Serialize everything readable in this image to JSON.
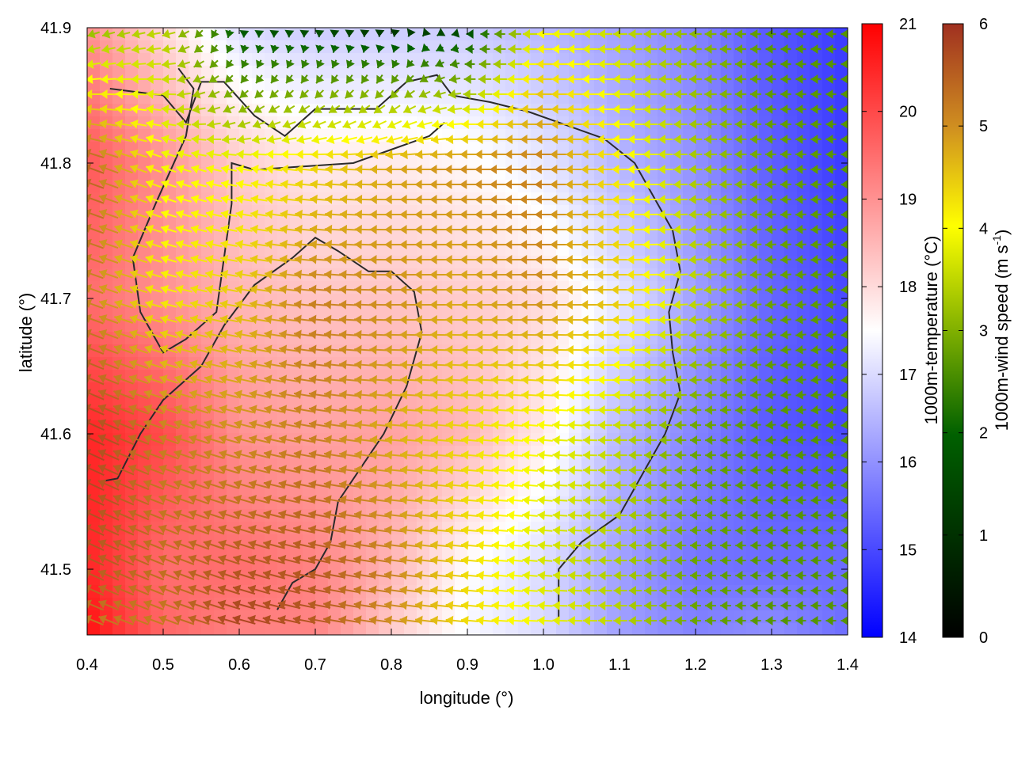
{
  "chart_data": {
    "type": "heatmap",
    "title": "",
    "xlabel": "longitude (°)",
    "ylabel": "latitude (°)",
    "xlim": [
      0.4,
      1.4
    ],
    "ylim": [
      41.45,
      41.9
    ],
    "x_ticks": [
      "0.4",
      "0.5",
      "0.6",
      "0.7",
      "0.8",
      "0.9",
      "1.0",
      "1.1",
      "1.2",
      "1.3",
      "1.4"
    ],
    "y_ticks": [
      "41.5",
      "41.6",
      "41.7",
      "41.8",
      "41.9"
    ],
    "x_tick_values": [
      0.4,
      0.5,
      0.6,
      0.7,
      0.8,
      0.9,
      1.0,
      1.1,
      1.2,
      1.3,
      1.4
    ],
    "y_tick_values": [
      41.5,
      41.6,
      41.7,
      41.8,
      41.9
    ],
    "grid": false,
    "temperature_colorbar": {
      "label": "1000m-temperature (°C)",
      "range": [
        14,
        21
      ],
      "ticks": [
        "14",
        "15",
        "16",
        "17",
        "18",
        "19",
        "20",
        "21"
      ],
      "tick_values": [
        14,
        15,
        16,
        17,
        18,
        19,
        20,
        21
      ],
      "colors": [
        "#0000ff",
        "#ffffff",
        "#ff0000"
      ]
    },
    "wind_colorbar": {
      "label_main": "1000m-wind speed (m s",
      "label_sup": "-1",
      "label_end": ")",
      "range": [
        0,
        6
      ],
      "ticks": [
        "0",
        "1",
        "2",
        "3",
        "4",
        "5",
        "6"
      ],
      "tick_values": [
        0,
        1,
        2,
        3,
        4,
        5,
        6
      ],
      "colors": [
        "#000000",
        "#006000",
        "#80b000",
        "#ffff00",
        "#d09020",
        "#a03020"
      ]
    },
    "temperature_field": {
      "description_keys": [
        "lon",
        "lat",
        "temp"
      ],
      "grid_lon": [
        0.4,
        0.5,
        0.6,
        0.7,
        0.8,
        0.9,
        1.0,
        1.1,
        1.2,
        1.3,
        1.4
      ],
      "grid_lat": [
        41.9,
        41.8,
        41.7,
        41.6,
        41.5,
        41.45
      ],
      "values": [
        [
          19.0,
          18.0,
          17.0,
          16.8,
          16.8,
          16.8,
          16.5,
          16.2,
          15.8,
          15.2,
          14.8
        ],
        [
          19.8,
          19.0,
          18.2,
          17.8,
          17.8,
          17.6,
          17.2,
          16.5,
          16.0,
          15.3,
          14.8
        ],
        [
          19.5,
          19.0,
          18.5,
          18.3,
          18.3,
          18.2,
          18.0,
          17.2,
          16.2,
          15.4,
          15.0
        ],
        [
          20.5,
          20.0,
          19.0,
          18.8,
          18.8,
          18.5,
          17.8,
          16.5,
          15.8,
          15.2,
          15.0
        ],
        [
          20.5,
          19.5,
          19.5,
          19.2,
          18.5,
          17.5,
          17.0,
          16.2,
          15.6,
          15.5,
          15.5
        ],
        [
          20.8,
          19.6,
          19.2,
          19.2,
          18.2,
          17.4,
          17.0,
          16.2,
          15.8,
          16.0,
          15.5
        ]
      ]
    },
    "wind_field": {
      "grid_lon": [
        0.4,
        0.5,
        0.6,
        0.7,
        0.8,
        0.9,
        1.0,
        1.1,
        1.2,
        1.3,
        1.4
      ],
      "grid_lat": [
        41.9,
        41.8,
        41.7,
        41.6,
        41.5,
        41.45
      ],
      "speed": [
        [
          2.5,
          3.0,
          1.0,
          0.8,
          0.5,
          0.8,
          3.5,
          3.0,
          2.5,
          2.0,
          2.0
        ],
        [
          5.5,
          3.5,
          3.5,
          4.0,
          4.5,
          4.8,
          5.0,
          3.8,
          2.8,
          2.2,
          2.0
        ],
        [
          5.0,
          3.8,
          4.2,
          5.0,
          4.8,
          4.5,
          4.8,
          4.2,
          3.0,
          2.2,
          2.0
        ],
        [
          5.8,
          5.0,
          4.8,
          5.0,
          4.5,
          4.0,
          3.5,
          3.0,
          2.2,
          2.0,
          2.0
        ],
        [
          5.5,
          5.2,
          5.5,
          5.5,
          5.0,
          4.0,
          3.2,
          2.8,
          2.2,
          2.0,
          2.0
        ],
        [
          5.0,
          5.0,
          5.8,
          5.5,
          4.8,
          4.0,
          3.5,
          3.0,
          2.2,
          2.0,
          2.0
        ]
      ],
      "direction_deg_from_east": [
        [
          200,
          190,
          270,
          270,
          270,
          180,
          180,
          180,
          180,
          180,
          180
        ],
        [
          160,
          160,
          170,
          175,
          180,
          180,
          180,
          180,
          180,
          180,
          180
        ],
        [
          160,
          165,
          170,
          175,
          180,
          180,
          180,
          180,
          185,
          185,
          185
        ],
        [
          155,
          160,
          165,
          170,
          175,
          175,
          175,
          180,
          180,
          185,
          185
        ],
        [
          155,
          158,
          162,
          168,
          172,
          175,
          175,
          180,
          180,
          180,
          180
        ],
        [
          158,
          160,
          165,
          170,
          172,
          175,
          178,
          180,
          180,
          180,
          180
        ]
      ]
    },
    "contours": [
      {
        "level": 18,
        "points": [
          [
            0.43,
            41.855
          ],
          [
            0.5,
            41.85
          ],
          [
            0.53,
            41.83
          ],
          [
            0.55,
            41.86
          ],
          [
            0.58,
            41.86
          ],
          [
            0.62,
            41.835
          ],
          [
            0.66,
            41.82
          ],
          [
            0.7,
            41.84
          ],
          [
            0.78,
            41.84
          ],
          [
            0.82,
            41.86
          ],
          [
            0.86,
            41.865
          ],
          [
            0.88,
            41.85
          ],
          [
            0.93,
            41.845
          ],
          [
            0.98,
            41.838
          ],
          [
            1.03,
            41.828
          ],
          [
            1.08,
            41.818
          ],
          [
            1.12,
            41.8
          ],
          [
            1.15,
            41.77
          ],
          [
            1.17,
            41.75
          ],
          [
            1.18,
            41.72
          ],
          [
            1.165,
            41.69
          ],
          [
            1.17,
            41.66
          ],
          [
            1.18,
            41.63
          ],
          [
            1.16,
            41.6
          ],
          [
            1.13,
            41.57
          ],
          [
            1.1,
            41.54
          ],
          [
            1.05,
            41.52
          ],
          [
            1.02,
            41.5
          ],
          [
            1.02,
            41.46
          ]
        ]
      },
      {
        "level": 19,
        "points": [
          [
            0.42,
            41.565
          ],
          [
            0.44,
            41.567
          ],
          [
            0.47,
            41.6
          ],
          [
            0.5,
            41.625
          ],
          [
            0.55,
            41.65
          ],
          [
            0.58,
            41.68
          ],
          [
            0.62,
            41.71
          ],
          [
            0.67,
            41.73
          ],
          [
            0.7,
            41.745
          ],
          [
            0.73,
            41.735
          ],
          [
            0.77,
            41.72
          ],
          [
            0.8,
            41.72
          ],
          [
            0.83,
            41.705
          ],
          [
            0.84,
            41.675
          ],
          [
            0.82,
            41.635
          ],
          [
            0.79,
            41.6
          ],
          [
            0.76,
            41.575
          ],
          [
            0.73,
            41.55
          ],
          [
            0.72,
            41.52
          ],
          [
            0.7,
            41.5
          ],
          [
            0.67,
            41.49
          ],
          [
            0.65,
            41.47
          ]
        ]
      },
      {
        "level": 18,
        "points": [
          [
            0.52,
            41.87
          ],
          [
            0.54,
            41.855
          ],
          [
            0.53,
            41.82
          ],
          [
            0.49,
            41.77
          ],
          [
            0.46,
            41.73
          ],
          [
            0.47,
            41.69
          ],
          [
            0.5,
            41.66
          ],
          [
            0.53,
            41.67
          ],
          [
            0.57,
            41.69
          ],
          [
            0.58,
            41.73
          ],
          [
            0.59,
            41.77
          ],
          [
            0.59,
            41.8
          ],
          [
            0.62,
            41.795
          ],
          [
            0.67,
            41.797
          ],
          [
            0.75,
            41.8
          ],
          [
            0.81,
            41.812
          ],
          [
            0.85,
            41.82
          ],
          [
            0.87,
            41.83
          ]
        ]
      }
    ]
  }
}
